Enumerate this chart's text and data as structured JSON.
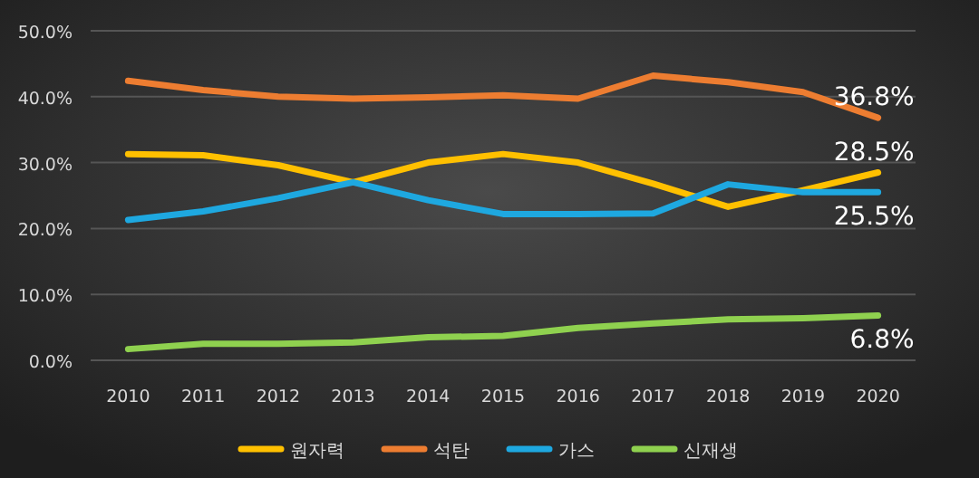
{
  "chart_data": {
    "type": "line",
    "categories": [
      "2010",
      "2011",
      "2012",
      "2013",
      "2014",
      "2015",
      "2016",
      "2017",
      "2018",
      "2019",
      "2020"
    ],
    "ylim": [
      0,
      50
    ],
    "yticks": [
      {
        "value": 0,
        "label": "0.0%"
      },
      {
        "value": 10,
        "label": "10.0%"
      },
      {
        "value": 20,
        "label": "20.0%"
      },
      {
        "value": 30,
        "label": "30.0%"
      },
      {
        "value": 40,
        "label": "40.0%"
      },
      {
        "value": 50,
        "label": "50.0%"
      }
    ],
    "grid": "y",
    "legend": "bottom",
    "marker": "none",
    "series": [
      {
        "name": "원자력",
        "color": "#ffc000",
        "values": [
          31.3,
          31.1,
          29.6,
          27.0,
          30.0,
          31.3,
          30.0,
          26.8,
          23.3,
          25.8,
          28.5
        ],
        "value_labels": [
          null,
          null,
          null,
          null,
          null,
          null,
          null,
          null,
          null,
          null,
          "28.5%"
        ]
      },
      {
        "name": "석탄",
        "color": "#ed7d31",
        "values": [
          42.4,
          41.0,
          40.0,
          39.7,
          39.9,
          40.2,
          39.7,
          43.2,
          42.2,
          40.7,
          36.8
        ],
        "value_labels": [
          null,
          null,
          null,
          null,
          null,
          null,
          null,
          null,
          null,
          null,
          "36.8%"
        ]
      },
      {
        "name": "가스",
        "color": "#1ea8e0",
        "values": [
          21.3,
          22.6,
          24.6,
          27.0,
          24.3,
          22.2,
          22.2,
          22.3,
          26.7,
          25.5,
          25.5
        ],
        "value_labels": [
          null,
          null,
          null,
          null,
          null,
          null,
          null,
          null,
          null,
          null,
          "25.5%"
        ]
      },
      {
        "name": "신재생",
        "color": "#8fd14f",
        "values": [
          1.7,
          2.5,
          2.5,
          2.7,
          3.5,
          3.7,
          4.9,
          5.6,
          6.2,
          6.4,
          6.8
        ],
        "value_labels": [
          null,
          null,
          null,
          null,
          null,
          null,
          null,
          null,
          null,
          null,
          "6.8%"
        ]
      }
    ]
  }
}
